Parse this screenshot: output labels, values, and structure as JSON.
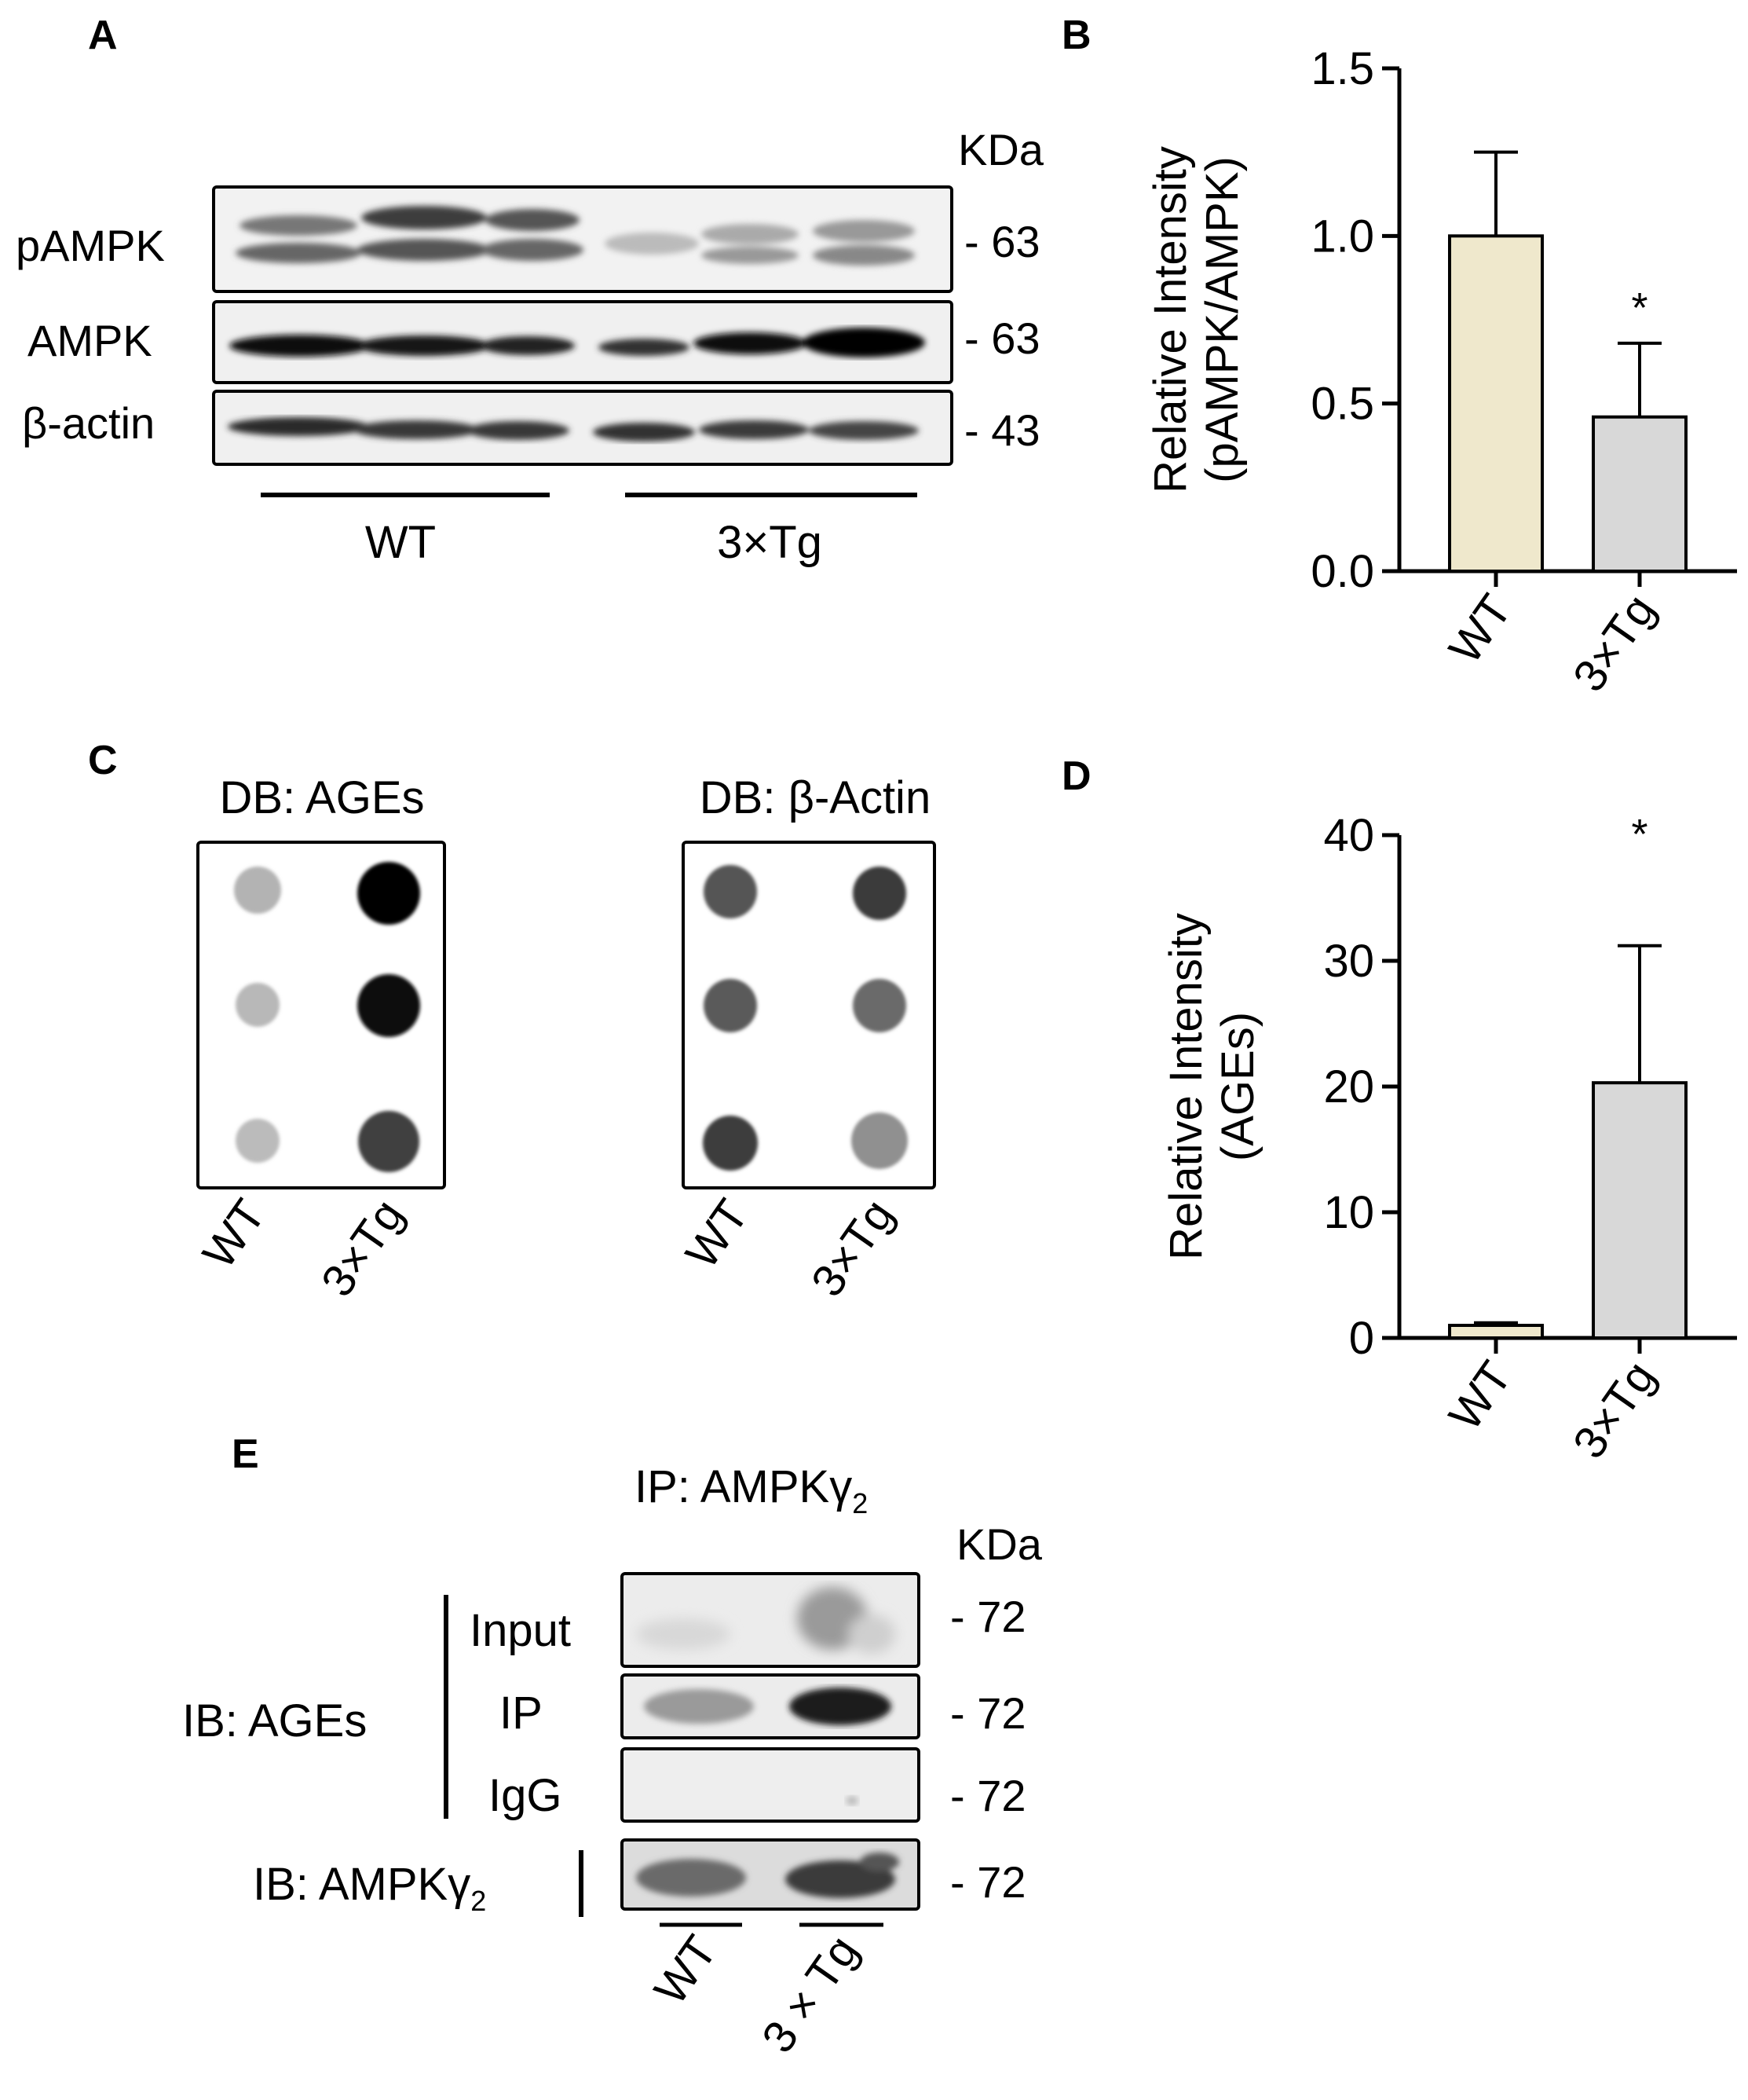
{
  "panels": {
    "A": {
      "letter": "A",
      "kda": "KDa",
      "blots": [
        {
          "label": "pAMPK",
          "kda": "- 63"
        },
        {
          "label": "AMPK",
          "kda": "- 63"
        },
        {
          "label": "β-actin",
          "kda": "- 43"
        }
      ],
      "groups": [
        "WT",
        "3×Tg"
      ]
    },
    "C": {
      "letter": "C",
      "blots": [
        {
          "title": "DB: AGEs",
          "x_labels": [
            "WT",
            "3×Tg"
          ]
        },
        {
          "title": "DB: β-Actin",
          "x_labels": [
            "WT",
            "3×Tg"
          ]
        }
      ]
    },
    "E": {
      "letter": "E",
      "title": "IP: AMPKγ",
      "title_sub": "2",
      "kda": "KDa",
      "ib_ages": "IB: AGEs",
      "ib_ampk": "IB: AMPKγ",
      "ib_ampk_sub": "2",
      "rows": [
        "Input",
        "IP",
        "IgG"
      ],
      "row_kda": [
        "- 72",
        "- 72",
        "- 72",
        "- 72"
      ],
      "groups": [
        "WT",
        "3 × Tg"
      ]
    }
  },
  "chart_data": [
    {
      "panel": "B",
      "type": "bar",
      "ylabel_line1": "Relative Intensity",
      "ylabel_line2": "(pAMPK/AMPK)",
      "ylim": [
        0,
        1.5
      ],
      "yticks": [
        "0.0",
        "0.5",
        "1.0",
        "1.5"
      ],
      "categories": [
        "WT",
        "3×Tg"
      ],
      "values": [
        1.0,
        0.46
      ],
      "errors": [
        0.25,
        0.22
      ],
      "colors": [
        "#efe8cc",
        "#d8d8d8"
      ],
      "significance": [
        "",
        "*"
      ]
    },
    {
      "panel": "D",
      "type": "bar",
      "ylabel_line1": "Relative Intensity",
      "ylabel_line2": "(AGEs)",
      "ylim": [
        0,
        40
      ],
      "yticks": [
        "0",
        "10",
        "20",
        "30",
        "40"
      ],
      "categories": [
        "WT",
        "3×Tg"
      ],
      "values": [
        1.0,
        20.3
      ],
      "errors": [
        0.2,
        10.9
      ],
      "colors": [
        "#efe8cc",
        "#d8d8d8"
      ],
      "significance": [
        "",
        "*"
      ]
    }
  ]
}
